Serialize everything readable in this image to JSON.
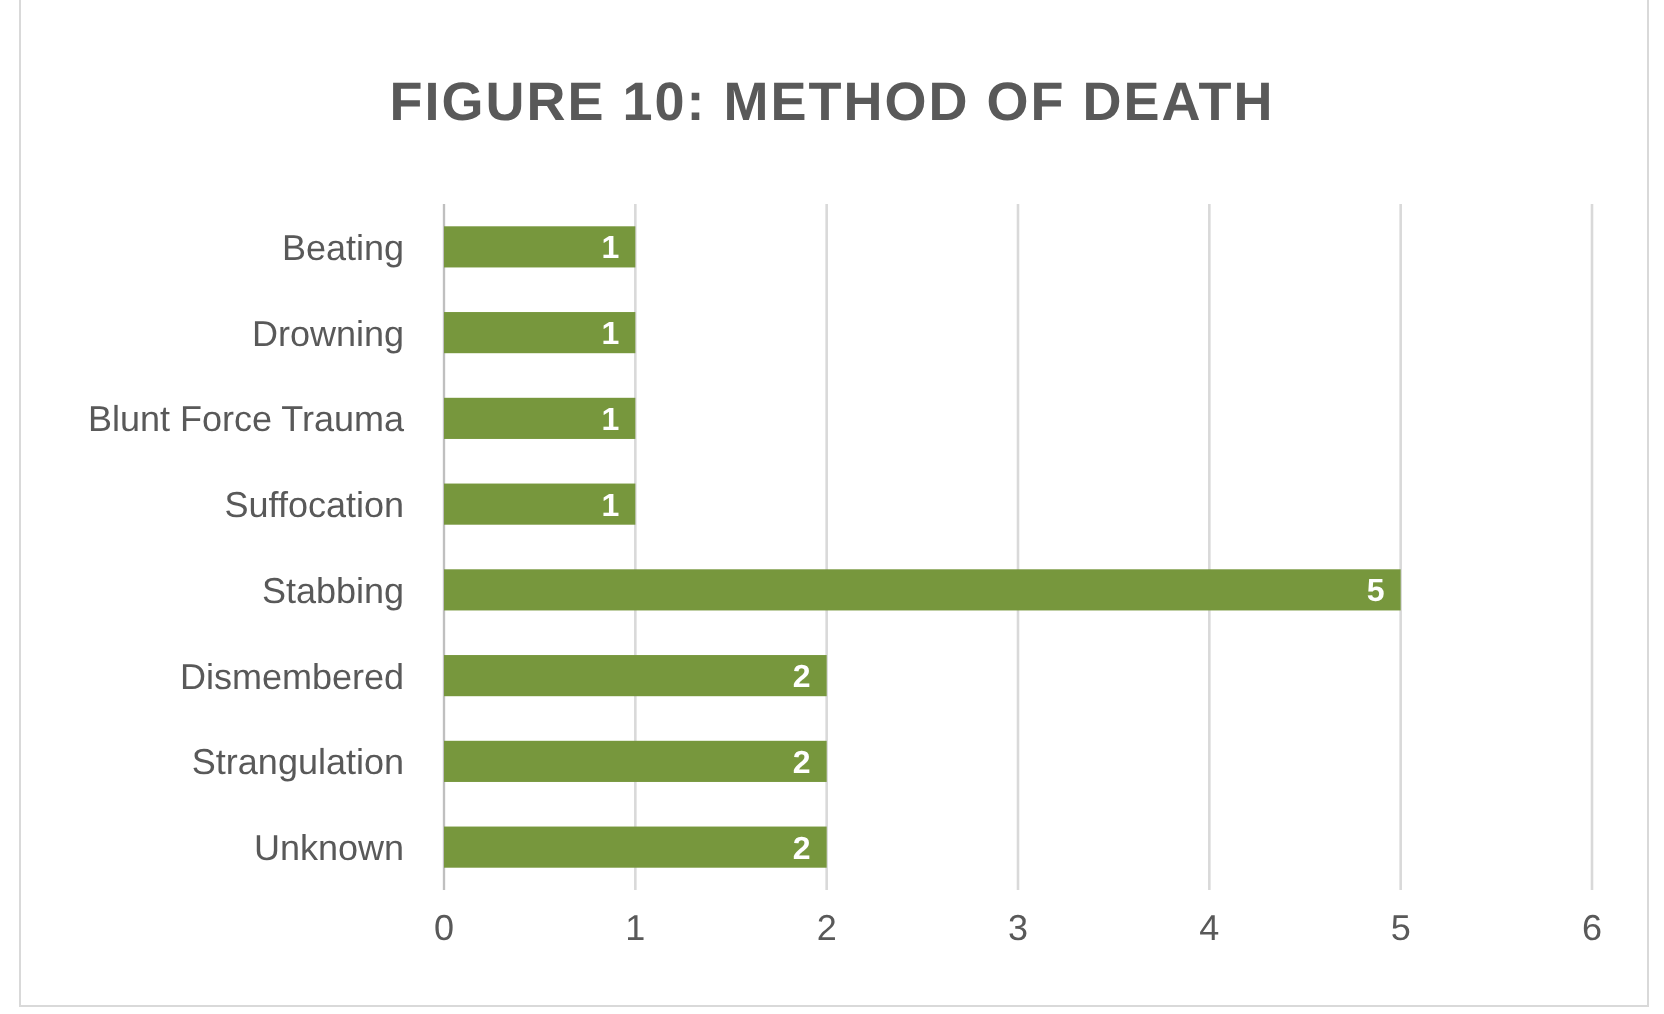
{
  "chart_data": {
    "type": "bar",
    "orientation": "horizontal",
    "title": "FIGURE 10: METHOD OF DEATH",
    "categories": [
      "Beating",
      "Drowning",
      "Blunt Force Trauma",
      "Suffocation",
      "Stabbing",
      "Dismembered",
      "Strangulation",
      "Unknown"
    ],
    "values": [
      1,
      1,
      1,
      1,
      5,
      2,
      2,
      2
    ],
    "color": "#77973d",
    "xlim": [
      0,
      6
    ],
    "xticks": [
      0,
      1,
      2,
      3,
      4,
      5,
      6
    ],
    "grid": "x",
    "data_labels": true
  }
}
